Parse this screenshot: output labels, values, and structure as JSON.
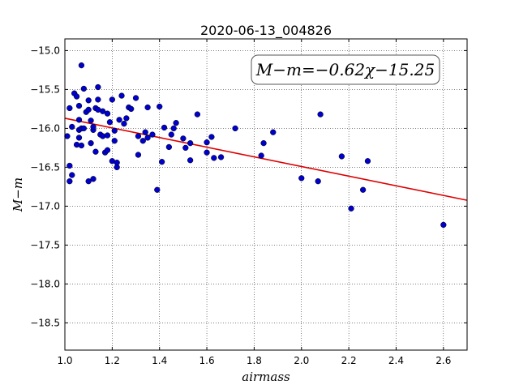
{
  "chart_data": {
    "type": "scatter",
    "title": "2020-06-13_004826",
    "xlabel": "airmass",
    "ylabel": "M−m",
    "xlim": [
      1.0,
      2.7
    ],
    "ylim": [
      -18.85,
      -14.85
    ],
    "y_inverted": false,
    "grid": true,
    "grid_style": "dotted",
    "x_ticks": [
      1.0,
      1.2,
      1.4,
      1.6,
      1.8,
      2.0,
      2.2,
      2.4,
      2.6
    ],
    "x_tick_labels": [
      "1.0",
      "1.2",
      "1.4",
      "1.6",
      "1.8",
      "2.0",
      "2.2",
      "2.4",
      "2.6"
    ],
    "y_ticks": [
      -15.0,
      -15.5,
      -16.0,
      -16.5,
      -17.0,
      -17.5,
      -18.0,
      -18.5
    ],
    "y_tick_labels": [
      "−15.0",
      "−15.5",
      "−16.0",
      "−16.5",
      "−17.0",
      "−17.5",
      "−18.0",
      "−18.5"
    ],
    "annotation": "M−m=−0.62χ−15.25",
    "fit": {
      "slope": -0.62,
      "intercept": -15.25,
      "color": "#dd0000"
    },
    "marker_color": "#0000cc",
    "series": [
      {
        "points": [
          [
            1.01,
            -16.1
          ],
          [
            1.02,
            -16.48
          ],
          [
            1.02,
            -16.68
          ],
          [
            1.02,
            -15.74
          ],
          [
            1.03,
            -15.98
          ],
          [
            1.03,
            -16.6
          ],
          [
            1.04,
            -15.55
          ],
          [
            1.05,
            -15.59
          ],
          [
            1.05,
            -16.21
          ],
          [
            1.06,
            -15.89
          ],
          [
            1.06,
            -16.02
          ],
          [
            1.06,
            -16.12
          ],
          [
            1.06,
            -15.71
          ],
          [
            1.07,
            -16.0
          ],
          [
            1.07,
            -16.22
          ],
          [
            1.07,
            -15.19
          ],
          [
            1.08,
            -15.49
          ],
          [
            1.08,
            -16.0
          ],
          [
            1.09,
            -15.79
          ],
          [
            1.1,
            -15.76
          ],
          [
            1.1,
            -15.64
          ],
          [
            1.1,
            -16.68
          ],
          [
            1.11,
            -16.19
          ],
          [
            1.11,
            -15.9
          ],
          [
            1.12,
            -16.02
          ],
          [
            1.12,
            -15.98
          ],
          [
            1.12,
            -16.65
          ],
          [
            1.13,
            -15.74
          ],
          [
            1.13,
            -16.3
          ],
          [
            1.14,
            -15.76
          ],
          [
            1.14,
            -15.47
          ],
          [
            1.14,
            -15.63
          ],
          [
            1.15,
            -16.08
          ],
          [
            1.16,
            -16.1
          ],
          [
            1.16,
            -15.78
          ],
          [
            1.17,
            -16.31
          ],
          [
            1.18,
            -15.81
          ],
          [
            1.18,
            -16.09
          ],
          [
            1.18,
            -16.28
          ],
          [
            1.19,
            -15.92
          ],
          [
            1.2,
            -15.63
          ],
          [
            1.2,
            -16.42
          ],
          [
            1.21,
            -16.03
          ],
          [
            1.21,
            -16.16
          ],
          [
            1.22,
            -16.5
          ],
          [
            1.22,
            -16.44
          ],
          [
            1.23,
            -15.89
          ],
          [
            1.24,
            -15.58
          ],
          [
            1.25,
            -15.94
          ],
          [
            1.26,
            -15.87
          ],
          [
            1.27,
            -15.73
          ],
          [
            1.28,
            -15.75
          ],
          [
            1.3,
            -15.61
          ],
          [
            1.31,
            -16.1
          ],
          [
            1.31,
            -16.34
          ],
          [
            1.33,
            -16.16
          ],
          [
            1.34,
            -16.05
          ],
          [
            1.35,
            -15.73
          ],
          [
            1.35,
            -16.12
          ],
          [
            1.37,
            -16.08
          ],
          [
            1.39,
            -16.79
          ],
          [
            1.4,
            -15.72
          ],
          [
            1.41,
            -16.43
          ],
          [
            1.42,
            -15.99
          ],
          [
            1.44,
            -16.24
          ],
          [
            1.45,
            -16.08
          ],
          [
            1.46,
            -16.0
          ],
          [
            1.47,
            -15.93
          ],
          [
            1.5,
            -16.13
          ],
          [
            1.51,
            -16.25
          ],
          [
            1.53,
            -16.41
          ],
          [
            1.53,
            -16.19
          ],
          [
            1.56,
            -15.82
          ],
          [
            1.6,
            -16.31
          ],
          [
            1.6,
            -16.18
          ],
          [
            1.62,
            -16.11
          ],
          [
            1.63,
            -16.38
          ],
          [
            1.66,
            -16.37
          ],
          [
            1.72,
            -16.0
          ],
          [
            1.83,
            -16.35
          ],
          [
            1.84,
            -16.19
          ],
          [
            1.88,
            -16.05
          ],
          [
            2.0,
            -16.64
          ],
          [
            2.07,
            -16.68
          ],
          [
            2.08,
            -15.82
          ],
          [
            2.17,
            -16.36
          ],
          [
            2.21,
            -17.03
          ],
          [
            2.26,
            -16.79
          ],
          [
            2.28,
            -16.42
          ],
          [
            2.6,
            -17.24
          ]
        ]
      }
    ]
  }
}
